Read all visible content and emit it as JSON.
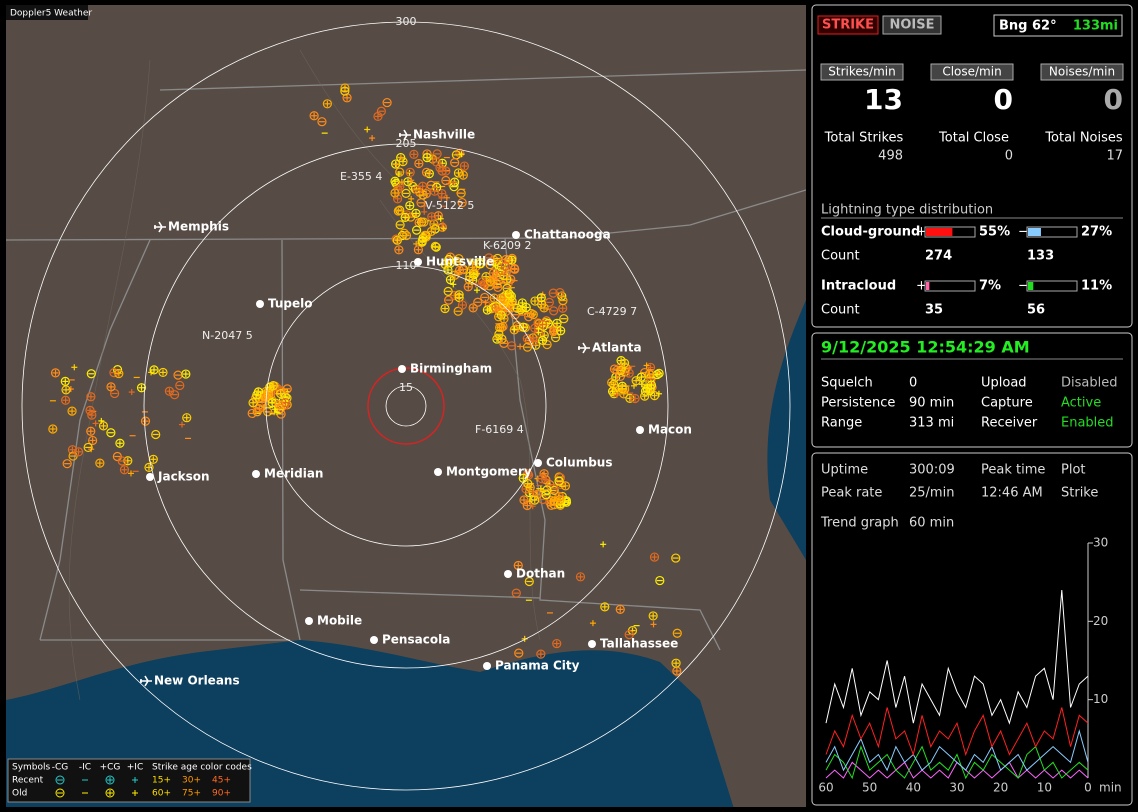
{
  "window": {
    "title": "Doppler5 Weather"
  },
  "map": {
    "ring_labels": [
      "300",
      "205",
      "110",
      "15"
    ],
    "cities": [
      {
        "label": "Nashville",
        "airport": true
      },
      {
        "label": "Chattanooga",
        "airport": false
      },
      {
        "label": "Memphis",
        "airport": true
      },
      {
        "label": "Huntsville",
        "airport": false
      },
      {
        "label": "Tupelo",
        "airport": false
      },
      {
        "label": "Birmingham",
        "airport": false
      },
      {
        "label": "Atlanta",
        "airport": true
      },
      {
        "label": "Macon",
        "airport": false
      },
      {
        "label": "Columbus",
        "airport": false
      },
      {
        "label": "Montgomery",
        "airport": false
      },
      {
        "label": "Jackson",
        "airport": false
      },
      {
        "label": "Meridian",
        "airport": false
      },
      {
        "label": "Dothan",
        "airport": false
      },
      {
        "label": "Mobile",
        "airport": false
      },
      {
        "label": "Pensacola",
        "airport": false
      },
      {
        "label": "Tallahassee",
        "airport": false
      },
      {
        "label": "Panama City",
        "airport": false
      },
      {
        "label": "New Orleans",
        "airport": true
      }
    ],
    "storm_labels": [
      "E-355 4",
      "V-5122 5",
      "K-6209 2",
      "N-2047 5",
      "C-4729 7",
      "F-6169 4"
    ],
    "legend": {
      "title": "Symbols",
      "columns": [
        "-CG",
        "-IC",
        "+CG",
        "+IC"
      ],
      "age_title": "Strike age color codes",
      "rows": [
        {
          "label": "Recent",
          "ages": [
            "15+",
            "30+",
            "45+"
          ]
        },
        {
          "label": "Old",
          "ages": [
            "60+",
            "75+",
            "90+"
          ]
        }
      ]
    }
  },
  "strike_panel": {
    "buttons": [
      "STRIKE",
      "NOISE"
    ],
    "bearing": "Bng 62°",
    "distance": "133mi",
    "rates": [
      {
        "label": "Strikes/min",
        "value": 13,
        "total_label": "Total Strikes",
        "total": 498
      },
      {
        "label": "Close/min",
        "value": 0,
        "total_label": "Total Close",
        "total": 0
      },
      {
        "label": "Noises/min",
        "value": 0,
        "total_label": "Total Noises",
        "total": 17
      }
    ],
    "distribution_title": "Lightning type distribution",
    "count_label": "Count",
    "types": [
      {
        "label": "Cloud-ground",
        "plus": {
          "sign": "+",
          "percent": 55,
          "percent_label": "55%",
          "count": 274,
          "color": "#ff1010"
        },
        "minus": {
          "sign": "−",
          "percent": 27,
          "percent_label": "27%",
          "count": 133,
          "color": "#88ccff"
        }
      },
      {
        "label": "Intracloud",
        "plus": {
          "sign": "+",
          "percent": 7,
          "percent_label": "7%",
          "count": 35,
          "color": "#ff66aa"
        },
        "minus": {
          "sign": "−",
          "percent": 11,
          "percent_label": "11%",
          "count": 56,
          "color": "#22dd22"
        }
      }
    ]
  },
  "status_panel": {
    "datetime": "9/12/2025 12:54:29 AM",
    "rows": [
      {
        "label": "Squelch",
        "value": "0",
        "label2": "Upload",
        "value2": "Disabled",
        "color2": "#bbbbbb"
      },
      {
        "label": "Persistence",
        "value": "90 min",
        "label2": "Capture",
        "value2": "Active",
        "color2": "#22dd22"
      },
      {
        "label": "Range",
        "value": "313 mi",
        "label2": "Receiver",
        "value2": "Enabled",
        "color2": "#22dd22"
      }
    ]
  },
  "trend_panel": {
    "rows": [
      {
        "label": "Uptime",
        "value": "300:09",
        "label2": "Peak time",
        "value2": "Plot"
      },
      {
        "label": "Peak rate",
        "value": "25/min",
        "label2": "12:46 AM",
        "value2": "Strike"
      }
    ],
    "trend_label": "Trend graph",
    "trend_value": "60 min"
  },
  "chart_data": {
    "type": "line",
    "x": [
      60,
      58,
      56,
      54,
      52,
      50,
      48,
      46,
      44,
      42,
      40,
      38,
      36,
      34,
      32,
      30,
      28,
      26,
      24,
      22,
      20,
      18,
      16,
      14,
      12,
      10,
      8,
      6,
      4,
      2,
      0
    ],
    "xlim": [
      60,
      0
    ],
    "xticks": [
      60,
      50,
      40,
      30,
      20,
      10,
      0
    ],
    "x_unit": "min",
    "ylim": [
      0,
      30
    ],
    "yticks": [
      10,
      20,
      30
    ],
    "series": [
      {
        "color": "#ffffff",
        "values": [
          7,
          12,
          9,
          14,
          8,
          11,
          10,
          15,
          9,
          13,
          7,
          12,
          10,
          8,
          14,
          11,
          9,
          13,
          12,
          8,
          10,
          7,
          11,
          9,
          13,
          14,
          10,
          24,
          9,
          12,
          13
        ]
      },
      {
        "color": "#ff2020",
        "values": [
          3,
          6,
          4,
          8,
          5,
          7,
          4,
          9,
          5,
          6,
          3,
          8,
          4,
          6,
          5,
          7,
          3,
          6,
          8,
          4,
          6,
          3,
          5,
          7,
          4,
          6,
          5,
          9,
          4,
          8,
          7
        ]
      },
      {
        "color": "#88ccff",
        "values": [
          2,
          4,
          1,
          3,
          5,
          2,
          3,
          1,
          4,
          2,
          3,
          1,
          2,
          4,
          3,
          2,
          1,
          3,
          2,
          4,
          1,
          2,
          3,
          1,
          2,
          3,
          4,
          3,
          2,
          6,
          2
        ]
      },
      {
        "color": "#22dd22",
        "values": [
          1,
          3,
          2,
          0,
          4,
          1,
          2,
          3,
          1,
          0,
          2,
          4,
          1,
          2,
          1,
          3,
          0,
          2,
          1,
          3,
          2,
          1,
          0,
          3,
          4,
          1,
          2,
          0,
          1,
          2,
          1
        ]
      },
      {
        "color": "#ff66ff",
        "values": [
          0,
          1,
          0,
          2,
          1,
          0,
          1,
          0,
          1,
          2,
          0,
          1,
          0,
          1,
          0,
          2,
          1,
          0,
          1,
          0,
          1,
          2,
          0,
          1,
          0,
          1,
          0,
          1,
          0,
          1,
          0
        ]
      }
    ]
  }
}
